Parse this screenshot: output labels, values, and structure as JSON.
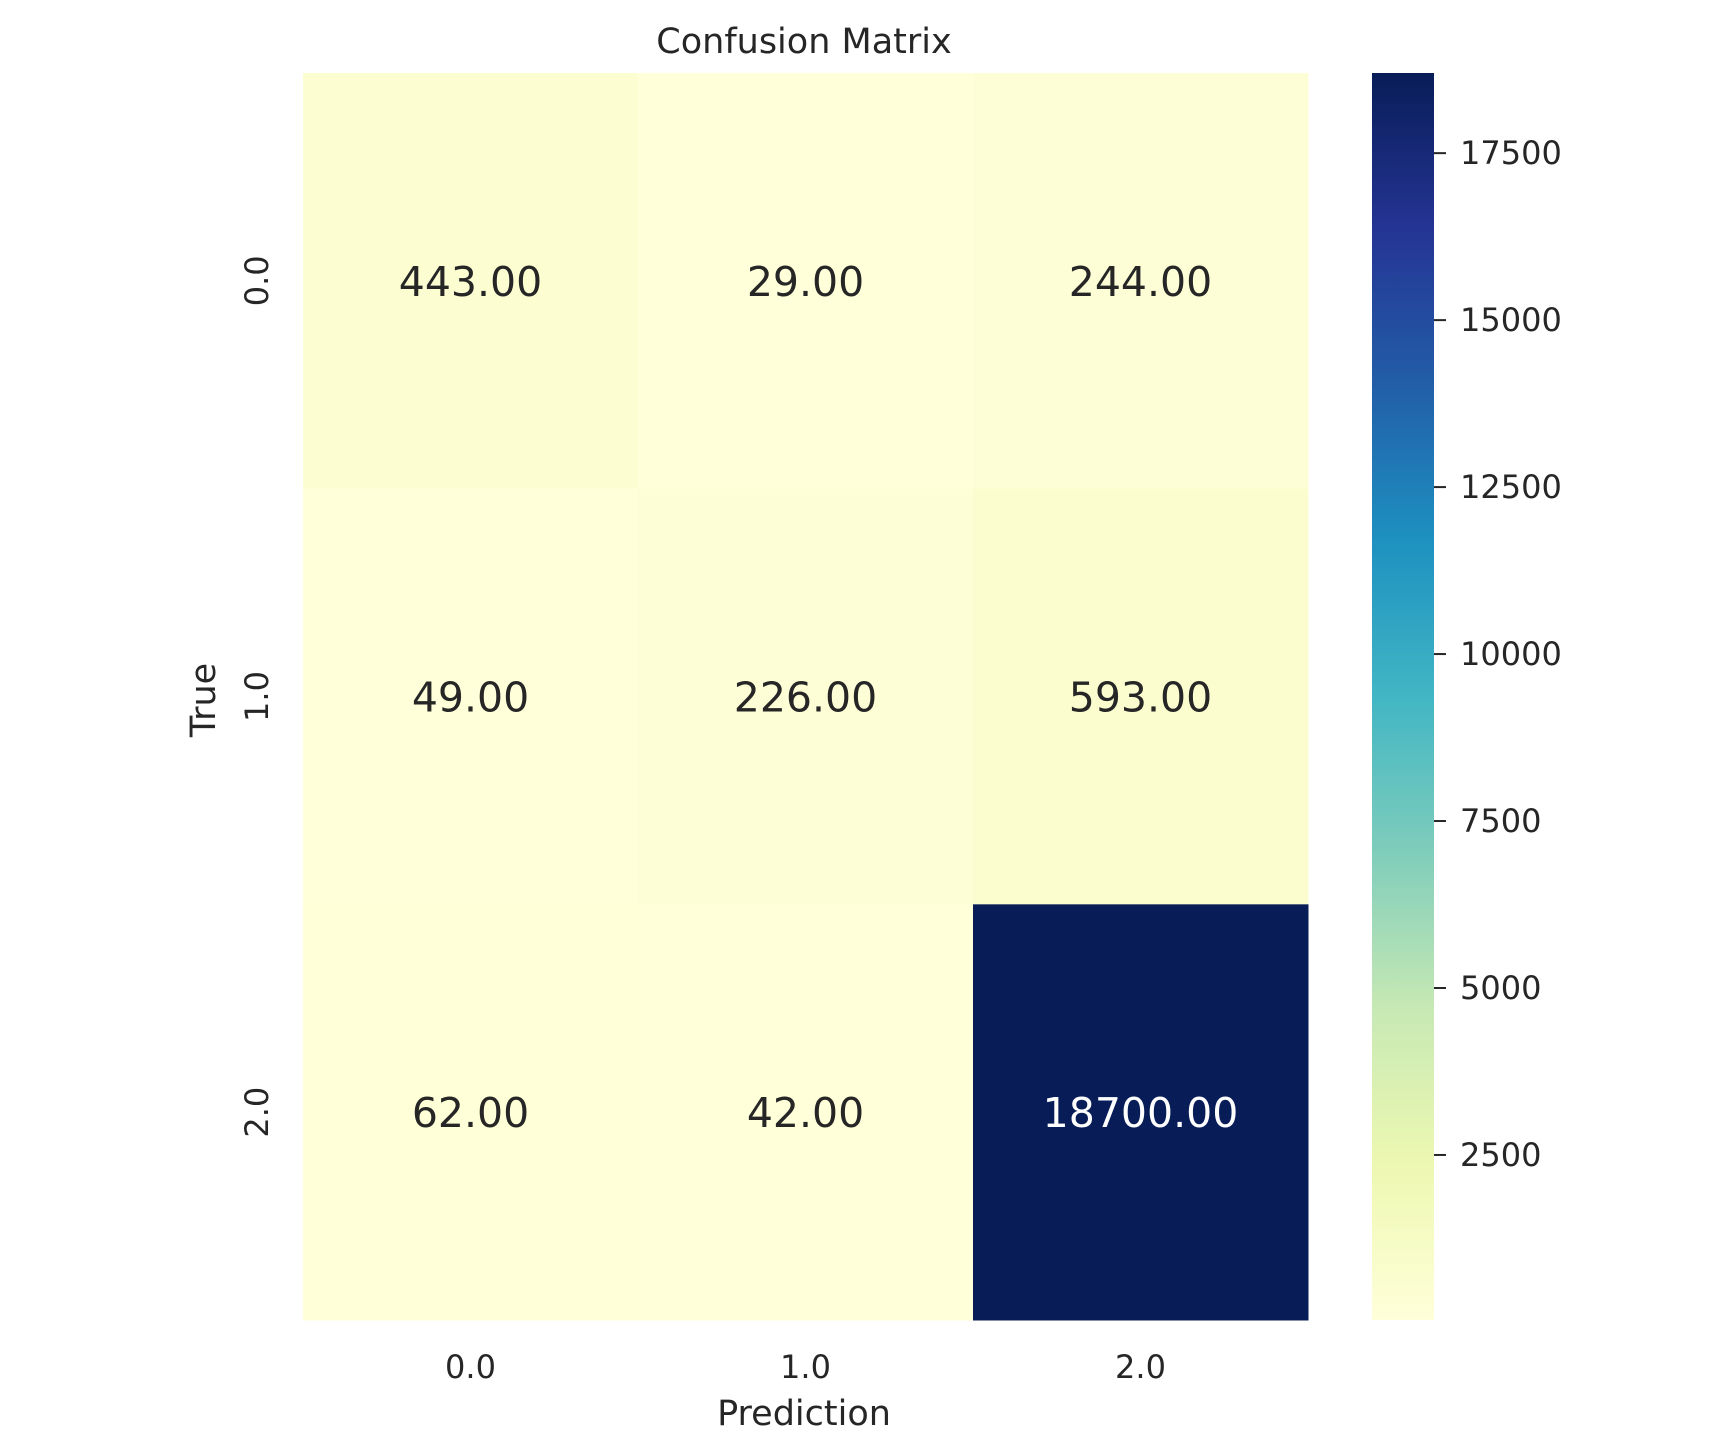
{
  "chart_data": {
    "type": "heatmap",
    "title": "Confusion Matrix",
    "xlabel": "Prediction",
    "ylabel": "True",
    "x_categories": [
      "0.0",
      "1.0",
      "2.0"
    ],
    "y_categories": [
      "0.0",
      "1.0",
      "2.0"
    ],
    "cell_labels": [
      [
        "443.00",
        "29.00",
        "244.00"
      ],
      [
        "49.00",
        "226.00",
        "593.00"
      ],
      [
        "62.00",
        "42.00",
        "18700.00"
      ]
    ],
    "values": [
      [
        443,
        29,
        244
      ],
      [
        49,
        226,
        593
      ],
      [
        62,
        42,
        18700
      ]
    ],
    "colorbar": {
      "ticks": [
        2500,
        5000,
        7500,
        10000,
        12500,
        15000,
        17500
      ],
      "tick_labels": [
        "2500",
        "5000",
        "7500",
        "10000",
        "12500",
        "15000",
        "17500"
      ],
      "range": [
        29,
        18700
      ],
      "colormap": "YlGnBu",
      "colors": [
        "#ffffd9",
        "#edf8b1",
        "#c7e9b4",
        "#7fcdbb",
        "#41b6c4",
        "#1d91c0",
        "#225ea8",
        "#253494",
        "#081d58"
      ]
    },
    "grid": false,
    "legend": "none"
  }
}
